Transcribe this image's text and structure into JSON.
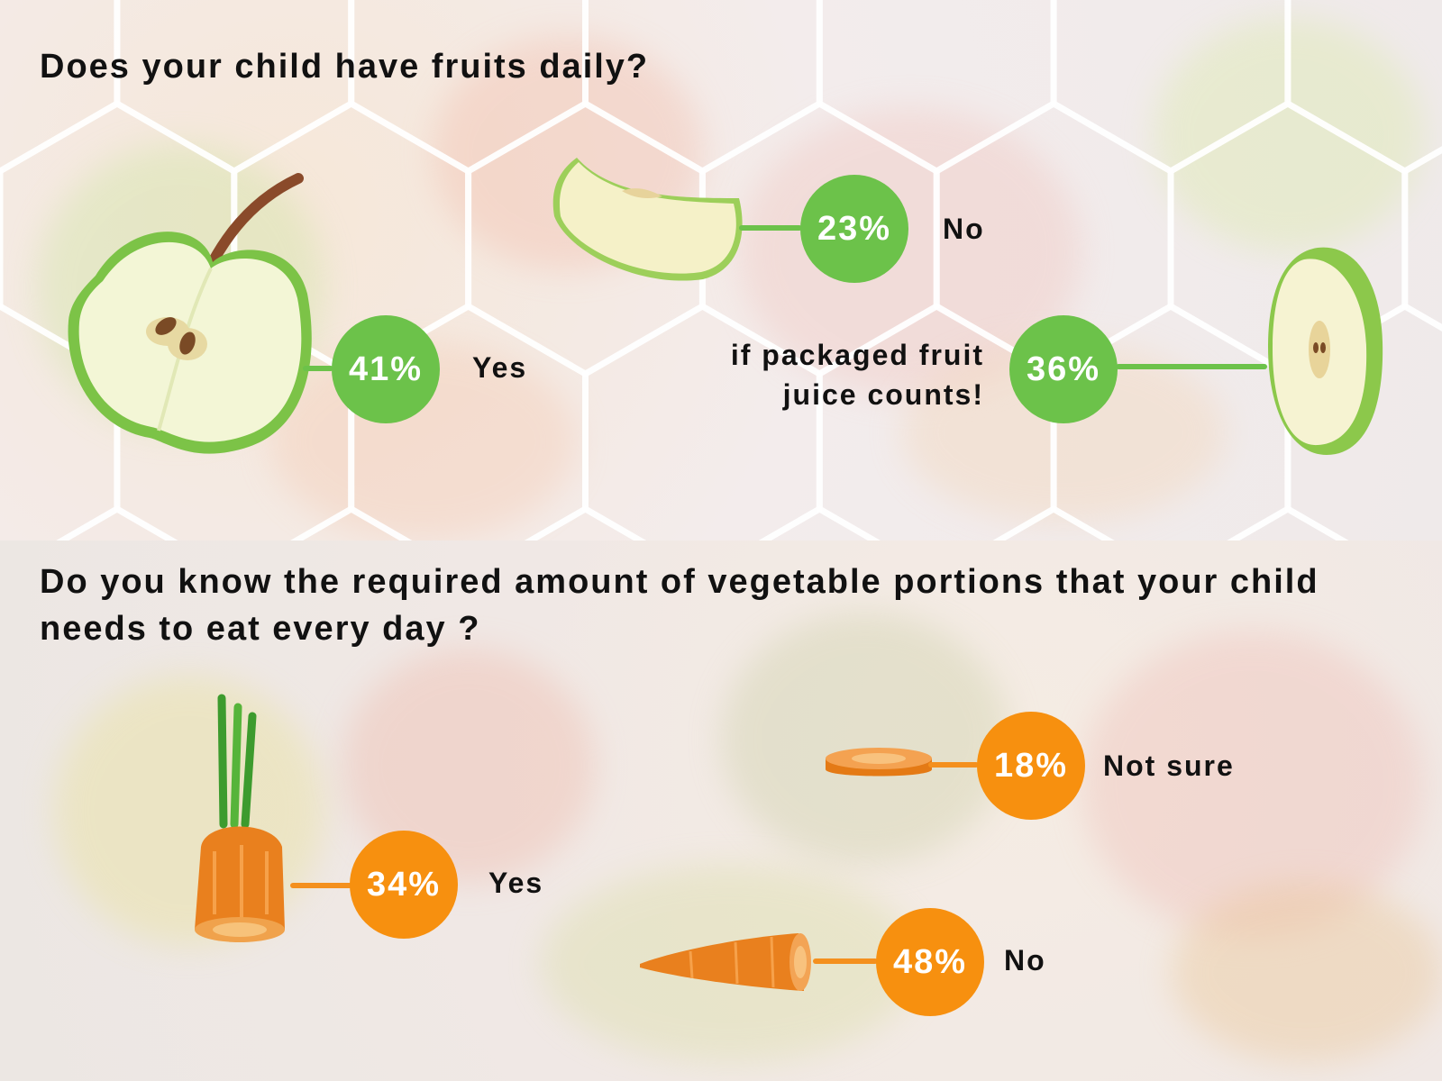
{
  "chart_data": [
    {
      "type": "pie",
      "title": "Does your child have fruits daily?",
      "categories": [
        "Yes",
        "No",
        "if packaged fruit juice counts!"
      ],
      "values": [
        41,
        23,
        36
      ],
      "value_labels": [
        "41%",
        "23%",
        "36%"
      ],
      "colors": [
        "#6cc24a"
      ]
    },
    {
      "type": "pie",
      "title": "Do you know the required amount of vegetable portions that your child needs to eat every day ?",
      "categories": [
        "Yes",
        "Not sure",
        "No"
      ],
      "values": [
        34,
        18,
        48
      ],
      "value_labels": [
        "34%",
        "18%",
        "48%"
      ],
      "colors": [
        "#f7900f"
      ]
    }
  ],
  "icons": [
    "green-apple-half-icon",
    "apple-slice-icon",
    "apple-cut-side-icon",
    "carrot-top-icon",
    "carrot-slice-icon",
    "carrot-tip-icon"
  ]
}
